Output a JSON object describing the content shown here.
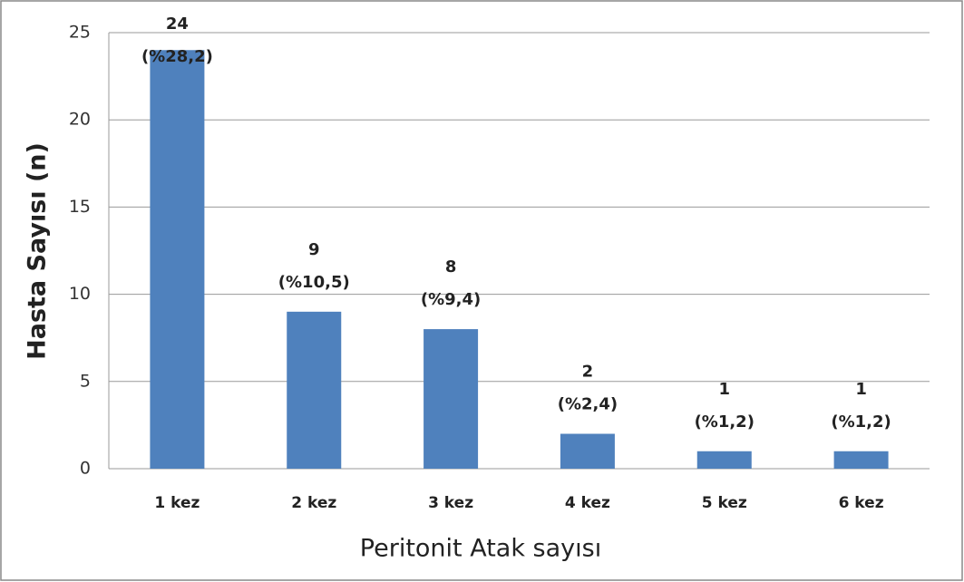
{
  "chart_data": {
    "type": "bar",
    "x_label": "Peritonit Atak sayısı",
    "y_label": "Hasta Sayısı (n)",
    "categories": [
      "1 kez",
      "2 kez",
      "3 kez",
      "4 kez",
      "5 kez",
      "6 kez"
    ],
    "values": [
      24,
      9,
      8,
      2,
      1,
      1
    ],
    "percent_labels": [
      "(%28,2)",
      "(%10,5)",
      "(%9,4)",
      "(%2,4)",
      "(%1,2)",
      "(%1,2)"
    ],
    "color": "#4f81bd",
    "ylim": [
      0,
      25
    ],
    "yticks": [
      0,
      5,
      10,
      15,
      20,
      25
    ],
    "grid": true
  }
}
